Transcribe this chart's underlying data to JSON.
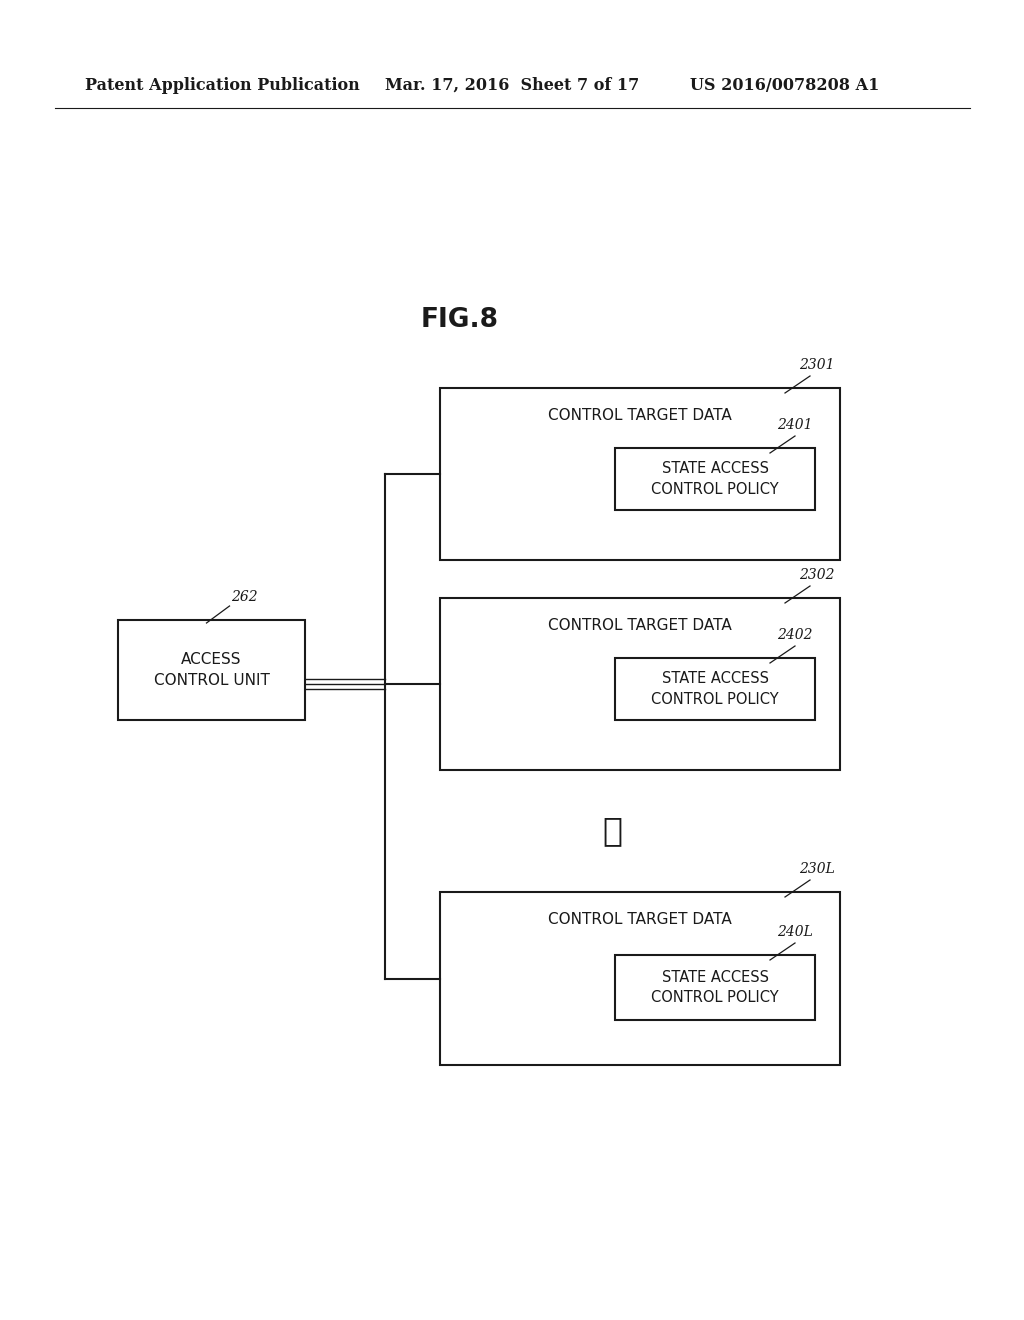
{
  "bg_color": "#ffffff",
  "header_left": "Patent Application Publication",
  "header_mid": "Mar. 17, 2016  Sheet 7 of 17",
  "header_right": "US 2016/0078208 A1",
  "fig_title": "FIG.8",
  "access_unit_label": "ACCESS\nCONTROL UNIT",
  "access_unit_ref": "262",
  "boxes": [
    {
      "outer_label": "CONTROL TARGET DATA",
      "outer_ref": "2301",
      "inner_label": "STATE ACCESS\nCONTROL POLICY",
      "inner_ref": "2401"
    },
    {
      "outer_label": "CONTROL TARGET DATA",
      "outer_ref": "2302",
      "inner_label": "STATE ACCESS\nCONTROL POLICY",
      "inner_ref": "2402"
    },
    {
      "outer_label": "CONTROL TARGET DATA",
      "outer_ref": "230L",
      "inner_label": "STATE ACCESS\nCONTROL POLICY",
      "inner_ref": "240L"
    }
  ],
  "dots": "⋮",
  "line_color": "#1a1a1a",
  "text_color": "#1a1a1a",
  "box_edge_color": "#1a1a1a",
  "header_fontsize": 11.5,
  "title_fontsize": 19,
  "outer_label_fontsize": 11,
  "inner_label_fontsize": 10.5,
  "ref_fontsize": 10,
  "access_fontsize": 11
}
